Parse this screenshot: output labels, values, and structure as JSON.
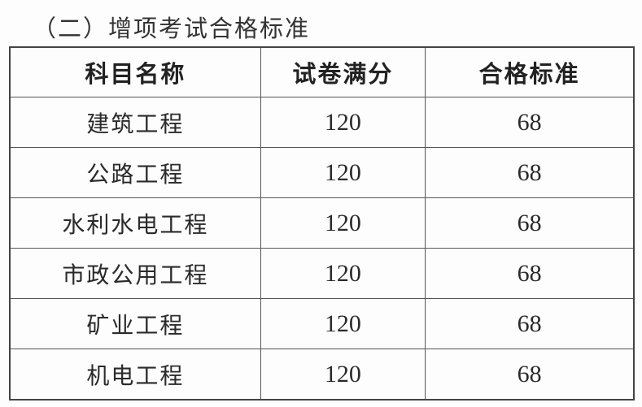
{
  "title": "（二）增项考试合格标准",
  "table": {
    "headers": [
      "科目名称",
      "试卷满分",
      "合格标准"
    ],
    "rows": [
      [
        "建筑工程",
        "120",
        "68"
      ],
      [
        "公路工程",
        "120",
        "68"
      ],
      [
        "水利水电工程",
        "120",
        "68"
      ],
      [
        "市政公用工程",
        "120",
        "68"
      ],
      [
        "矿业工程",
        "120",
        "68"
      ],
      [
        "机电工程",
        "120",
        "68"
      ]
    ]
  }
}
